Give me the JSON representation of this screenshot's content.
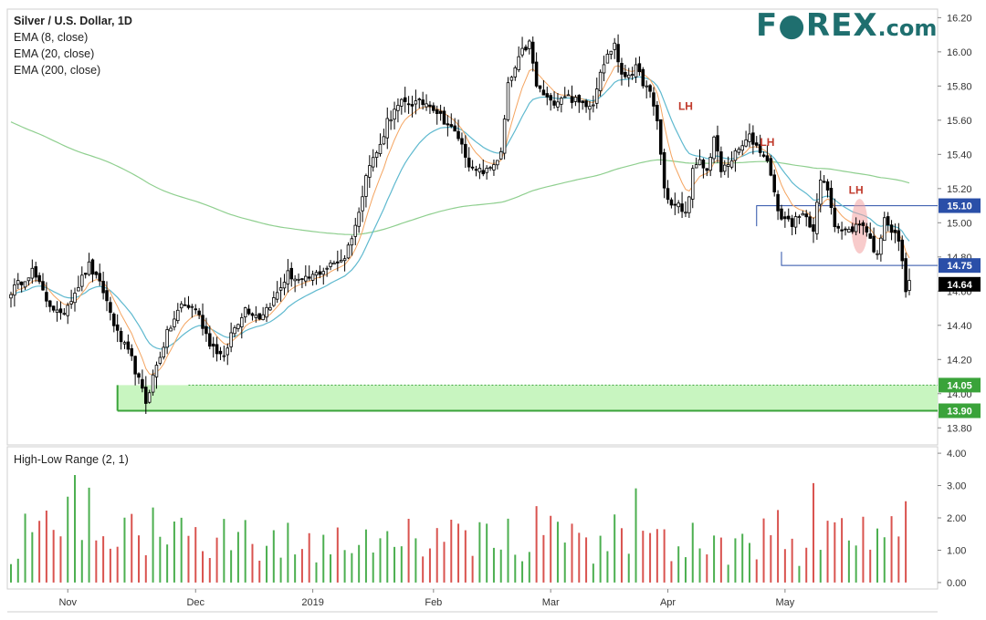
{
  "header": {
    "title": "Silver / U.S. Dollar, 1D",
    "indicators": [
      "EMA (8, close)",
      "EMA (20, close)",
      "EMA (200, close)"
    ]
  },
  "brand": {
    "name_part1": "F",
    "name_part2": "REX",
    "suffix": ".com",
    "color": "#1f6f6f"
  },
  "lower_panel": {
    "title": "High-Low Range (2, 1)"
  },
  "annotations": [
    "LH",
    "LH",
    "LH"
  ],
  "colors": {
    "up": "#ffffff",
    "down": "#000000",
    "ema8": "#f4a460",
    "ema20": "#5fb9cf",
    "ema200": "#8fcf8f",
    "support_zone": "#c8f5c0",
    "support_line": "#3aa33a",
    "resistance_line": "#2a4fa8",
    "hl_up": "#4caf50",
    "hl_down": "#d9534f"
  },
  "chart_data": {
    "type": "candlestick",
    "x_tick_labels": [
      "Nov",
      "Dec",
      "2019",
      "Feb",
      "Mar",
      "Apr",
      "May"
    ],
    "price_axis": {
      "ylim": [
        13.7,
        16.25
      ],
      "ticks": [
        "13.80",
        "14.00",
        "14.20",
        "14.40",
        "14.60",
        "14.80",
        "15.00",
        "15.20",
        "15.40",
        "15.60",
        "15.80",
        "16.00",
        "16.20"
      ]
    },
    "range_axis": {
      "ylim": [
        -0.2,
        4.2
      ],
      "ticks": [
        "0.00",
        "1.00",
        "2.00",
        "3.00",
        "4.00"
      ]
    },
    "price_labels": {
      "resistance": "15.10",
      "level_1475": "14.75",
      "last": "14.64",
      "zone_top": "14.05",
      "zone_bottom": "13.90"
    },
    "levels": {
      "resistance": 15.1,
      "level_1475": 14.75,
      "last": 14.64,
      "zone_top": 14.05,
      "zone_bottom": 13.9
    },
    "waypoints": [
      [
        0,
        14.6
      ],
      [
        6,
        14.72
      ],
      [
        10,
        14.55
      ],
      [
        14,
        14.45
      ],
      [
        18,
        14.6
      ],
      [
        22,
        14.75
      ],
      [
        26,
        14.6
      ],
      [
        30,
        14.35
      ],
      [
        34,
        14.2
      ],
      [
        38,
        13.95
      ],
      [
        40,
        14.1
      ],
      [
        44,
        14.35
      ],
      [
        48,
        14.52
      ],
      [
        52,
        14.5
      ],
      [
        56,
        14.3
      ],
      [
        60,
        14.2
      ],
      [
        62,
        14.35
      ],
      [
        66,
        14.5
      ],
      [
        70,
        14.45
      ],
      [
        74,
        14.55
      ],
      [
        78,
        14.7
      ],
      [
        82,
        14.65
      ],
      [
        86,
        14.7
      ],
      [
        90,
        14.75
      ],
      [
        94,
        14.8
      ],
      [
        98,
        15.05
      ],
      [
        100,
        15.3
      ],
      [
        104,
        15.45
      ],
      [
        106,
        15.6
      ],
      [
        110,
        15.7
      ],
      [
        114,
        15.7
      ],
      [
        118,
        15.7
      ],
      [
        122,
        15.6
      ],
      [
        126,
        15.5
      ],
      [
        130,
        15.3
      ],
      [
        134,
        15.3
      ],
      [
        138,
        15.4
      ],
      [
        140,
        15.8
      ],
      [
        144,
        16.0
      ],
      [
        146,
        16.05
      ],
      [
        148,
        15.8
      ],
      [
        152,
        15.7
      ],
      [
        156,
        15.75
      ],
      [
        160,
        15.7
      ],
      [
        164,
        15.7
      ],
      [
        166,
        15.9
      ],
      [
        170,
        16.05
      ],
      [
        172,
        15.85
      ],
      [
        176,
        15.9
      ],
      [
        180,
        15.75
      ],
      [
        182,
        15.6
      ],
      [
        184,
        15.2
      ],
      [
        186,
        15.1
      ],
      [
        188,
        15.1
      ],
      [
        190,
        15.05
      ],
      [
        192,
        15.3
      ],
      [
        194,
        15.35
      ],
      [
        196,
        15.3
      ],
      [
        198,
        15.5
      ],
      [
        200,
        15.3
      ],
      [
        202,
        15.35
      ],
      [
        206,
        15.45
      ],
      [
        208,
        15.5
      ],
      [
        210,
        15.45
      ],
      [
        212,
        15.4
      ],
      [
        214,
        15.3
      ],
      [
        216,
        15.05
      ],
      [
        220,
        15.0
      ],
      [
        224,
        15.05
      ],
      [
        226,
        14.95
      ],
      [
        228,
        15.25
      ],
      [
        230,
        15.2
      ],
      [
        232,
        15.0
      ],
      [
        234,
        14.95
      ],
      [
        236,
        14.95
      ],
      [
        238,
        14.98
      ],
      [
        240,
        15.0
      ],
      [
        242,
        14.9
      ],
      [
        244,
        14.8
      ],
      [
        246,
        15.05
      ],
      [
        248,
        14.95
      ],
      [
        250,
        14.9
      ],
      [
        252,
        14.62
      ],
      [
        253,
        14.64
      ]
    ]
  }
}
